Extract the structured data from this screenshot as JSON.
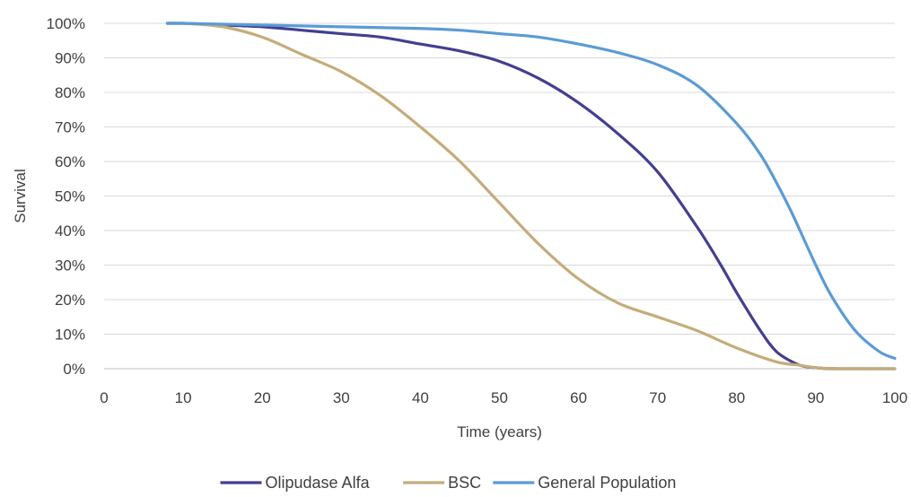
{
  "chart_data": {
    "type": "line",
    "title": "",
    "xlabel": "Time (years)",
    "ylabel": "Survival",
    "xlim": [
      0,
      100
    ],
    "ylim": [
      0,
      100
    ],
    "x_ticks": [
      0,
      10,
      20,
      30,
      40,
      50,
      60,
      70,
      80,
      90,
      100
    ],
    "x_tick_labels": [
      "0",
      "10",
      "20",
      "30",
      "40",
      "50",
      "60",
      "70",
      "80",
      "90",
      "100"
    ],
    "y_ticks": [
      0,
      10,
      20,
      30,
      40,
      50,
      60,
      70,
      80,
      90,
      100
    ],
    "y_tick_labels": [
      "0%",
      "10%",
      "20%",
      "30%",
      "40%",
      "50%",
      "60%",
      "70%",
      "80%",
      "90%",
      "100%"
    ],
    "grid": "horizontal",
    "legend_position": "bottom",
    "series": [
      {
        "name": "Olipudase Alfa",
        "color": "#433F8F",
        "x": [
          8,
          10,
          15,
          20,
          25,
          30,
          35,
          40,
          45,
          50,
          55,
          60,
          65,
          70,
          75,
          78,
          80,
          83,
          85,
          87,
          88,
          89,
          90,
          91,
          93,
          95,
          100
        ],
        "y": [
          100,
          100,
          99.5,
          99,
          98,
          97,
          96,
          94,
          92,
          89,
          84,
          77,
          68,
          57,
          41,
          30,
          22,
          11,
          5,
          2,
          1,
          0.5,
          0.3,
          0.1,
          0,
          0,
          0
        ]
      },
      {
        "name": "BSC",
        "color": "#C4AC7A",
        "x": [
          8,
          10,
          15,
          20,
          25,
          30,
          35,
          40,
          45,
          50,
          55,
          60,
          65,
          70,
          75,
          80,
          85,
          88,
          90,
          93,
          95,
          100
        ],
        "y": [
          100,
          100,
          99,
          96,
          91,
          86,
          79,
          70,
          60,
          48,
          36,
          26,
          19,
          15,
          11,
          6,
          2,
          1,
          0.3,
          0,
          0,
          0
        ]
      },
      {
        "name": "General Population",
        "color": "#5B9BD5",
        "x": [
          8,
          10,
          20,
          30,
          40,
          45,
          50,
          55,
          60,
          65,
          70,
          75,
          80,
          83,
          85,
          87,
          90,
          92,
          95,
          98,
          100
        ],
        "y": [
          100,
          100,
          99.5,
          99,
          98.5,
          98,
          97,
          96,
          94,
          91.5,
          88,
          82,
          71,
          62,
          54,
          45,
          30,
          21,
          11,
          5,
          3
        ]
      }
    ]
  }
}
